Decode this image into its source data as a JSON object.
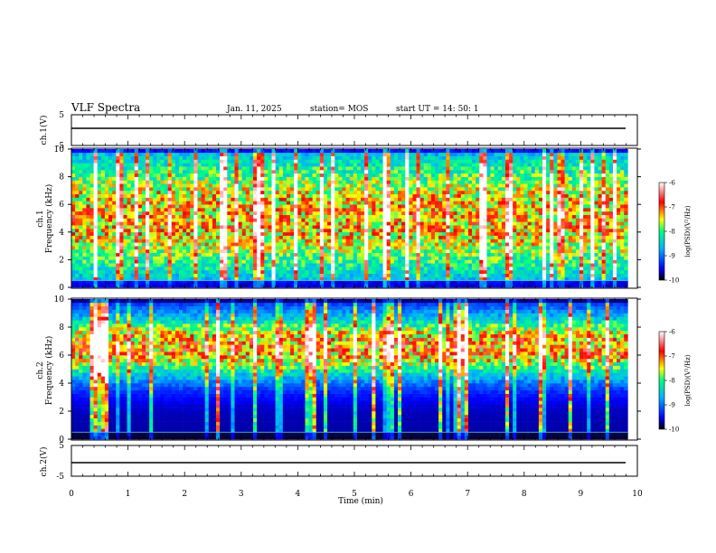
{
  "header": {
    "title": "VLF Spectra",
    "date": "Jan. 11, 2025",
    "station": "station= MOS",
    "start": "start  UT =   14: 50: 1"
  },
  "labels": {
    "ch1_wave": "ch.1(V)",
    "ch1_freq_a": "ch.1",
    "ch1_freq_b": "Frequency (kHz)",
    "ch2_freq_a": "ch.2",
    "ch2_freq_b": "Frequency (kHz)",
    "ch2_wave": "ch.2(V)",
    "xlabel": "Time (min)",
    "cbar_label": "log(PSD)(V²/Hz)"
  },
  "colors": {
    "psd_scale": [
      "#000000",
      "#0000ff",
      "#00b0ff",
      "#00ff80",
      "#ffff00",
      "#ff0000",
      "#ffffff"
    ]
  },
  "chart_data": [
    {
      "type": "line",
      "name": "ch.1 waveform",
      "ylabel": "ch.1(V)",
      "ylim": [
        -5,
        5
      ],
      "yticks": [
        5,
        -5
      ],
      "xlim": [
        0,
        10
      ],
      "baseline": 0
    },
    {
      "type": "heatmap",
      "name": "ch.1 spectrogram",
      "xlabel": "Time (min)",
      "ylabel": "Frequency (kHz)",
      "xlim": [
        0,
        9.83
      ],
      "ylim": [
        0,
        10
      ],
      "yticks": [
        0,
        2,
        4,
        6,
        8,
        10
      ],
      "colorbar": {
        "label": "log(PSD)(V²/Hz)",
        "range": [
          -10,
          -6
        ],
        "ticks": [
          -6,
          -7,
          -8,
          -9,
          -10
        ]
      },
      "dominant_band_kHz": [
        0.5,
        9.5
      ],
      "peak_log_psd": -7
    },
    {
      "type": "heatmap",
      "name": "ch.2 spectrogram",
      "xlabel": "Time (min)",
      "ylabel": "Frequency (kHz)",
      "xlim": [
        0,
        9.83
      ],
      "ylim": [
        0,
        10
      ],
      "yticks": [
        0,
        2,
        4,
        6,
        8,
        10
      ],
      "colorbar": {
        "label": "log(PSD)(V²/Hz)",
        "range": [
          -10,
          -6
        ],
        "ticks": [
          -6,
          -7,
          -8,
          -9,
          -10
        ]
      },
      "dominant_band_kHz": [
        4.5,
        8.5
      ],
      "peak_log_psd": -6.8
    },
    {
      "type": "line",
      "name": "ch.2 waveform",
      "ylabel": "ch.2(V)",
      "ylim": [
        -5,
        5
      ],
      "yticks": [
        5,
        -5
      ],
      "xlim": [
        0,
        10
      ],
      "baseline": 0
    }
  ],
  "xaxis": {
    "range": [
      0,
      10
    ],
    "ticks": [
      "0",
      "1",
      "2",
      "3",
      "4",
      "5",
      "6",
      "7",
      "8",
      "9",
      "10"
    ]
  }
}
